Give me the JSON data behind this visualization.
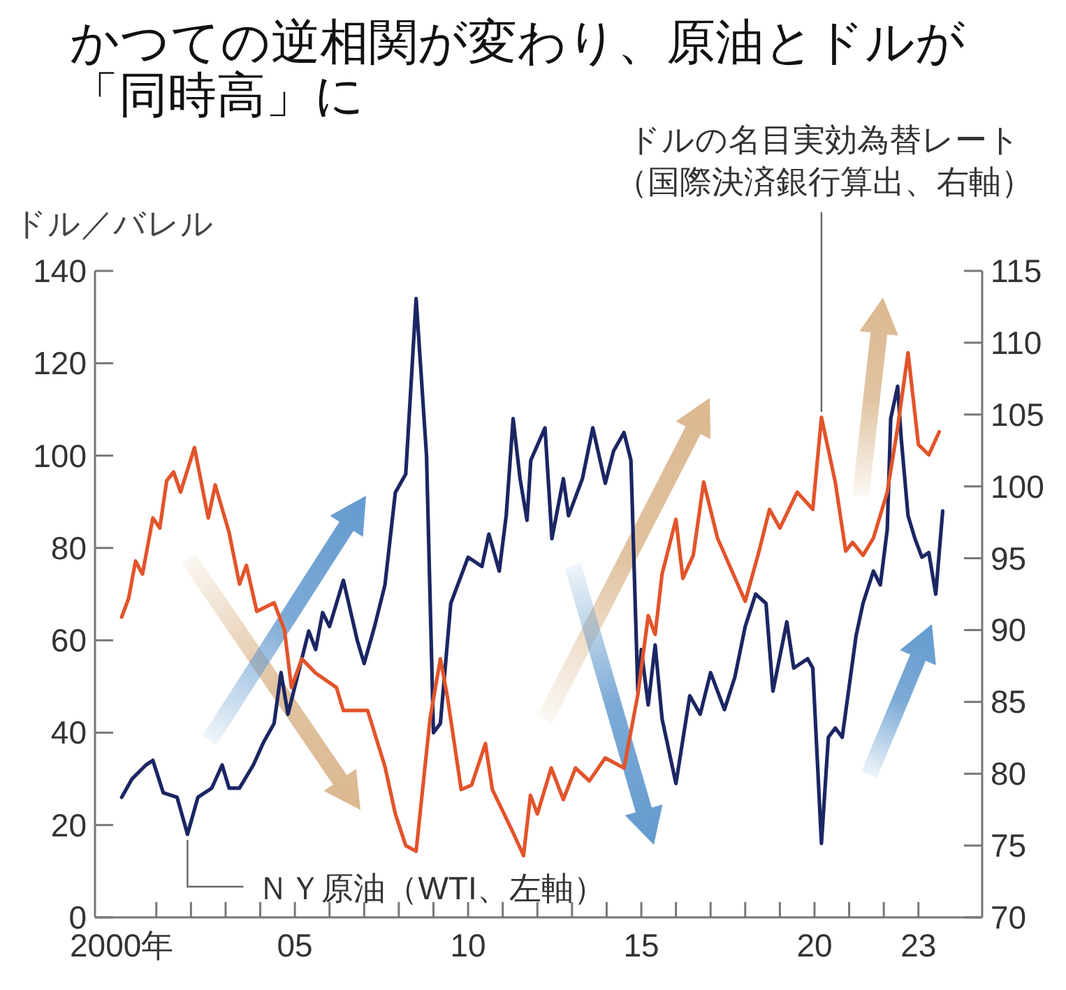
{
  "chart_data": {
    "type": "line",
    "title": "かつての逆相関が変わり、原油とドルが「同時高」に",
    "ylabel": "ドル／バレル",
    "xlim": [
      1999.23,
      2024.84
    ],
    "xticks": [
      {
        "value": 2000,
        "label": "2000年"
      },
      {
        "value": 2001,
        "label": null
      },
      {
        "value": 2002,
        "label": null
      },
      {
        "value": 2003,
        "label": null
      },
      {
        "value": 2004,
        "label": null
      },
      {
        "value": 2005,
        "label": "05"
      },
      {
        "value": 2006,
        "label": null
      },
      {
        "value": 2007,
        "label": null
      },
      {
        "value": 2008,
        "label": null
      },
      {
        "value": 2009,
        "label": null
      },
      {
        "value": 2010,
        "label": "10"
      },
      {
        "value": 2011,
        "label": null
      },
      {
        "value": 2012,
        "label": null
      },
      {
        "value": 2013,
        "label": null
      },
      {
        "value": 2014,
        "label": null
      },
      {
        "value": 2015,
        "label": "15"
      },
      {
        "value": 2016,
        "label": null
      },
      {
        "value": 2017,
        "label": null
      },
      {
        "value": 2018,
        "label": null
      },
      {
        "value": 2019,
        "label": null
      },
      {
        "value": 2020,
        "label": "20"
      },
      {
        "value": 2021,
        "label": null
      },
      {
        "value": 2022,
        "label": null
      },
      {
        "value": 2023,
        "label": "23"
      }
    ],
    "ylim": [
      0,
      140
    ],
    "yticks": [
      0,
      20,
      40,
      60,
      80,
      100,
      120,
      140
    ],
    "y2lim": [
      70,
      115
    ],
    "y2ticks": [
      70,
      75,
      80,
      85,
      90,
      95,
      100,
      105,
      110,
      115
    ],
    "grid": false,
    "series": [
      {
        "name": "ＮＹ原油（WTI、左軸）",
        "color": "#1b2663",
        "x": [
          2000.0,
          2000.3,
          2000.7,
          2000.9,
          2001.2,
          2001.6,
          2001.9,
          2002.2,
          2002.6,
          2002.9,
          2003.1,
          2003.4,
          2003.8,
          2004.1,
          2004.4,
          2004.6,
          2004.8,
          2005.1,
          2005.4,
          2005.6,
          2005.8,
          2006.0,
          2006.4,
          2006.8,
          2007.0,
          2007.3,
          2007.6,
          2007.9,
          2008.2,
          2008.5,
          2008.8,
          2009.0,
          2009.2,
          2009.5,
          2009.8,
          2010.0,
          2010.4,
          2010.6,
          2010.9,
          2011.1,
          2011.3,
          2011.5,
          2011.7,
          2011.81,
          2012.22,
          2012.42,
          2012.75,
          2012.9,
          2013.3,
          2013.6,
          2013.96,
          2014.2,
          2014.5,
          2014.7,
          2014.9,
          2015.0,
          2015.2,
          2015.4,
          2015.6,
          2016.0,
          2016.4,
          2016.7,
          2017.0,
          2017.4,
          2017.7,
          2018.0,
          2018.3,
          2018.6,
          2018.8,
          2019.2,
          2019.4,
          2019.8,
          2019.95,
          2020.2,
          2020.4,
          2020.6,
          2020.8,
          2021.2,
          2021.4,
          2021.7,
          2021.9,
          2022.1,
          2022.2,
          2022.4,
          2022.5,
          2022.7,
          2022.9,
          2023.1,
          2023.3,
          2023.5,
          2023.7
        ],
        "values": [
          26,
          30,
          33,
          34,
          27,
          26,
          18,
          26,
          28,
          33,
          28,
          28,
          33,
          38,
          42,
          53,
          44,
          53,
          62,
          58,
          66,
          63,
          73,
          60,
          55,
          63,
          72,
          92,
          96,
          134,
          100,
          40,
          42,
          68,
          74,
          78,
          76,
          83,
          75,
          87,
          108,
          95,
          86,
          99,
          106,
          82,
          95,
          87,
          95,
          106,
          94,
          101,
          105,
          99,
          49,
          58,
          46,
          59,
          43,
          29,
          48,
          44,
          53,
          45,
          52,
          63,
          70,
          68,
          49,
          64,
          54,
          56,
          54,
          16,
          39,
          41,
          39,
          61,
          68,
          75,
          72,
          84,
          108,
          115,
          104,
          87,
          82,
          78,
          79,
          70,
          88
        ]
      },
      {
        "name": "ドルの名目実効為替レート（国際決済銀行算出、右軸）",
        "color": "#e2542b",
        "axis": "y2",
        "x": [
          2000.0,
          2000.2,
          2000.4,
          2000.6,
          2000.9,
          2001.1,
          2001.3,
          2001.5,
          2001.7,
          2002.1,
          2002.5,
          2002.7,
          2003.1,
          2003.4,
          2003.6,
          2003.9,
          2004.4,
          2004.7,
          2004.9,
          2005.2,
          2005.6,
          2006.2,
          2006.4,
          2007.1,
          2007.6,
          2007.9,
          2008.2,
          2008.5,
          2008.9,
          2009.2,
          2009.4,
          2009.8,
          2010.1,
          2010.5,
          2010.7,
          2011.3,
          2011.6,
          2011.8,
          2012.0,
          2012.4,
          2012.75,
          2013.1,
          2013.5,
          2013.96,
          2014.5,
          2014.9,
          2015.2,
          2015.4,
          2015.6,
          2016.0,
          2016.2,
          2016.5,
          2016.8,
          2017.2,
          2017.6,
          2018.0,
          2018.4,
          2018.7,
          2019.0,
          2019.5,
          2019.95,
          2020.2,
          2020.6,
          2020.9,
          2021.1,
          2021.4,
          2021.7,
          2022.1,
          2022.4,
          2022.7,
          2023.0,
          2023.3,
          2023.6
        ],
        "values": [
          90.9,
          92.2,
          94.8,
          93.9,
          97.8,
          97.1,
          100.4,
          101.0,
          99.6,
          102.7,
          97.8,
          100.1,
          96.8,
          93.2,
          94.5,
          91.3,
          91.9,
          90,
          86,
          88,
          87,
          86,
          84.4,
          84.4,
          80.5,
          77.2,
          75,
          74.6,
          83.8,
          88,
          85.4,
          78.9,
          79.2,
          82.1,
          78.9,
          75.9,
          74.3,
          78.5,
          77.2,
          80.4,
          78.2,
          80.4,
          79.5,
          81.1,
          80.4,
          85.5,
          91,
          89.7,
          93.9,
          97.7,
          93.6,
          95.2,
          100.3,
          96.4,
          94.2,
          92,
          95.5,
          98.4,
          97.1,
          99.6,
          98.4,
          104.8,
          100.3,
          95.5,
          96.1,
          95.2,
          96.4,
          99.6,
          104.1,
          109.3,
          102.9,
          102.2,
          103.8
        ]
      }
    ]
  }
}
